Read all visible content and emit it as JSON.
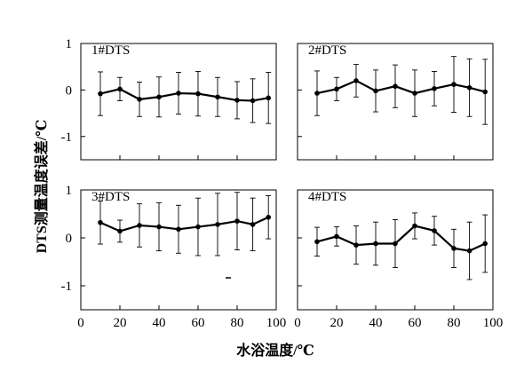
{
  "figure": {
    "ylabel": "DTS测量温度误差/℃",
    "xlabel": "水浴温度/℃"
  },
  "chart_data": [
    {
      "type": "line",
      "title": "1#DTS",
      "xlim": [
        0,
        100
      ],
      "ylim": [
        -1.5,
        1
      ],
      "yticks": [
        1,
        0,
        -1
      ],
      "x": [
        10,
        20,
        30,
        40,
        50,
        60,
        70,
        80,
        88,
        96
      ],
      "series": [
        {
          "values": [
            -0.08,
            0.02,
            -0.2,
            -0.15,
            -0.07,
            -0.08,
            -0.15,
            -0.22,
            -0.23,
            -0.17
          ],
          "err": [
            0.47,
            0.25,
            0.37,
            0.43,
            0.45,
            0.48,
            0.42,
            0.4,
            0.47,
            0.55
          ]
        }
      ]
    },
    {
      "type": "line",
      "title": "2#DTS",
      "xlim": [
        0,
        100
      ],
      "ylim": [
        -1.5,
        1
      ],
      "yticks": [
        1,
        0,
        -1
      ],
      "x": [
        10,
        20,
        30,
        40,
        50,
        60,
        70,
        80,
        88,
        96
      ],
      "series": [
        {
          "values": [
            -0.07,
            0.02,
            0.2,
            -0.02,
            0.08,
            -0.07,
            0.03,
            0.12,
            0.05,
            -0.04
          ],
          "err": [
            0.48,
            0.25,
            0.35,
            0.45,
            0.46,
            0.5,
            0.37,
            0.6,
            0.62,
            0.7
          ]
        }
      ]
    },
    {
      "type": "line",
      "title": "3#DTS",
      "xlim": [
        0,
        100
      ],
      "ylim": [
        -1.5,
        1
      ],
      "yticks": [
        1,
        0,
        -1
      ],
      "x": [
        10,
        20,
        30,
        40,
        50,
        60,
        70,
        80,
        88,
        96
      ],
      "series": [
        {
          "values": [
            0.32,
            0.14,
            0.26,
            0.23,
            0.18,
            0.23,
            0.28,
            0.35,
            0.28,
            0.43
          ],
          "err": [
            0.45,
            0.23,
            0.45,
            0.5,
            0.5,
            0.6,
            0.65,
            0.6,
            0.55,
            0.45
          ]
        }
      ]
    },
    {
      "type": "line",
      "title": "4#DTS",
      "xlim": [
        0,
        100
      ],
      "ylim": [
        -1.5,
        1
      ],
      "yticks": [
        1,
        0,
        -1
      ],
      "x": [
        10,
        20,
        30,
        40,
        50,
        60,
        70,
        80,
        88,
        96
      ],
      "series": [
        {
          "values": [
            -0.08,
            0.03,
            -0.15,
            -0.12,
            -0.12,
            0.25,
            0.15,
            -0.22,
            -0.27,
            -0.12
          ],
          "err": [
            0.3,
            0.2,
            0.4,
            0.45,
            0.5,
            0.27,
            0.3,
            0.4,
            0.6,
            0.6
          ]
        }
      ]
    }
  ],
  "x_ticks": [
    "0",
    "20",
    "40",
    "60",
    "80",
    "100"
  ]
}
